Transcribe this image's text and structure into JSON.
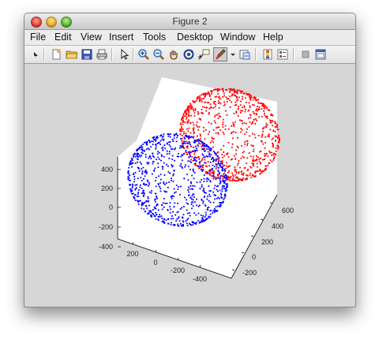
{
  "window": {
    "title": "Figure 2"
  },
  "menu": [
    "File",
    "Edit",
    "View",
    "Insert",
    "Tools",
    "Desktop",
    "Window",
    "Help"
  ],
  "toolbar": {
    "icons": [
      "arrow-icon",
      "new-figure-icon",
      "open-icon",
      "save-icon",
      "print-icon",
      "select-icon",
      "zoom-in-icon",
      "zoom-out-icon",
      "pan-icon",
      "rotate-icon",
      "data-cursor-icon",
      "brush-icon",
      "brush-dropdown-icon",
      "link-plot-icon",
      "colorbar-icon",
      "legend-icon",
      "hide-tools-icon",
      "show-tools-icon"
    ]
  },
  "colors": {
    "series_red": "#ff0000",
    "series_blue": "#0000ff",
    "axes_bg": "#ffffff",
    "figure_bg": "#d6d6d6"
  },
  "chart_data": {
    "type": "scatter",
    "view": "3d",
    "z_ticks": [
      "400",
      "200",
      "0",
      "-200",
      "-400"
    ],
    "x_ticks": [
      "200",
      "0",
      "-200",
      "-400"
    ],
    "y_ticks": [
      "600",
      "400",
      "200",
      "0",
      "-200"
    ],
    "series": [
      {
        "color": "#ff0000",
        "shape": "sphere",
        "center": [
          -150,
          300,
          80
        ],
        "radius": 300
      },
      {
        "color": "#0000ff",
        "shape": "sphere",
        "center": [
          100,
          0,
          0
        ],
        "radius": 300
      }
    ]
  }
}
